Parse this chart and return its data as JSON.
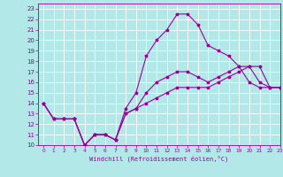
{
  "xlabel": "Windchill (Refroidissement éolien,°C)",
  "xlim": [
    -0.5,
    23
  ],
  "ylim": [
    10,
    23.5
  ],
  "xticks": [
    0,
    1,
    2,
    3,
    4,
    5,
    6,
    7,
    8,
    9,
    10,
    11,
    12,
    13,
    14,
    15,
    16,
    17,
    18,
    19,
    20,
    21,
    22,
    23
  ],
  "yticks": [
    10,
    11,
    12,
    13,
    14,
    15,
    16,
    17,
    18,
    19,
    20,
    21,
    22,
    23
  ],
  "bg_color": "#b2e8e8",
  "grid_color": "#ffffff",
  "line_color": "#990099",
  "line1_y": [
    14,
    12.5,
    12.5,
    12.5,
    10,
    11,
    11,
    10.5,
    13,
    13.5,
    15,
    16,
    16.5,
    17,
    17,
    16.5,
    16,
    16.5,
    17,
    17.5,
    17.5,
    16,
    15.5,
    15.5
  ],
  "line2_y": [
    14,
    12.5,
    12.5,
    12.5,
    10,
    11,
    11,
    10.5,
    13.5,
    15,
    18.5,
    20,
    21,
    22.5,
    22.5,
    21.5,
    19.5,
    19,
    18.5,
    17.5,
    16,
    15.5,
    15.5,
    15.5
  ],
  "line3_y": [
    14,
    12.5,
    12.5,
    12.5,
    10,
    11,
    11,
    10.5,
    13,
    13.5,
    14,
    14.5,
    15,
    15.5,
    15.5,
    15.5,
    15.5,
    16,
    16.5,
    17,
    17.5,
    17.5,
    15.5,
    15.5
  ]
}
